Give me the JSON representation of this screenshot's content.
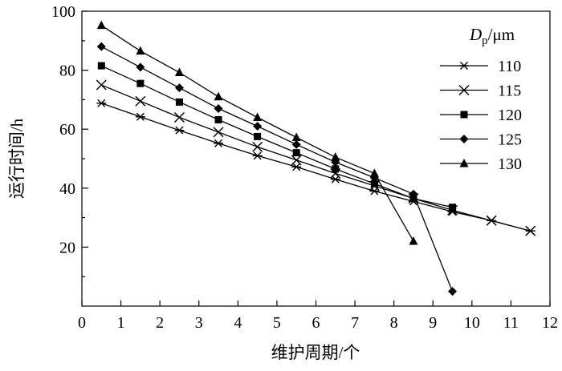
{
  "chart_data": {
    "type": "line",
    "xlabel": "维护周期/个",
    "ylabel": "运行时间/h",
    "xlim": [
      0,
      12
    ],
    "ylim": [
      0,
      100
    ],
    "x_ticks": [
      "0",
      "1",
      "2",
      "3",
      "4",
      "5",
      "6",
      "7",
      "8",
      "9",
      "10",
      "11",
      "12"
    ],
    "y_ticks": [
      "20",
      "40",
      "60",
      "80",
      "100"
    ],
    "grid": false,
    "legend": {
      "placement": "top-right",
      "title_main": "D",
      "title_sub": "p",
      "title_unit": "/μm"
    },
    "series": [
      {
        "name": "110",
        "marker": "asterisk",
        "x": [
          0.5,
          1.5,
          2.5,
          3.5,
          4.5,
          5.5,
          6.5,
          7.5,
          8.5,
          9.5,
          10.5,
          11.5
        ],
        "values": [
          68.8,
          64.2,
          59.6,
          55.2,
          51.0,
          47.2,
          43.0,
          39.0,
          35.5,
          32.0,
          29.0,
          25.5
        ]
      },
      {
        "name": "115",
        "marker": "x",
        "x": [
          0.5,
          1.5,
          2.5,
          3.5,
          4.5,
          5.5,
          6.5,
          7.5,
          8.5,
          9.5,
          10.5,
          11.5
        ],
        "values": [
          75.0,
          69.5,
          64.0,
          59.0,
          54.0,
          49.5,
          45.0,
          40.8,
          36.5,
          32.5,
          29.0,
          25.5
        ]
      },
      {
        "name": "120",
        "marker": "square",
        "x": [
          0.5,
          1.5,
          2.5,
          3.5,
          4.5,
          5.5,
          6.5,
          7.5,
          8.5,
          9.5
        ],
        "values": [
          81.5,
          75.5,
          69.2,
          63.2,
          57.5,
          52.0,
          46.5,
          41.5,
          36.5,
          33.5
        ]
      },
      {
        "name": "125",
        "marker": "diamond",
        "x": [
          0.5,
          1.5,
          2.5,
          3.5,
          4.5,
          5.5,
          6.5,
          7.5,
          8.5,
          9.5
        ],
        "values": [
          88.0,
          81.0,
          74.0,
          67.0,
          61.0,
          54.8,
          48.8,
          43.5,
          38.0,
          5.0
        ]
      },
      {
        "name": "130",
        "marker": "triangle",
        "x": [
          0.5,
          1.5,
          2.5,
          3.5,
          4.5,
          5.5,
          6.5,
          7.5,
          8.5
        ],
        "values": [
          95.2,
          86.5,
          79.2,
          71.0,
          64.0,
          57.2,
          50.5,
          45.0,
          22.0
        ]
      }
    ]
  }
}
